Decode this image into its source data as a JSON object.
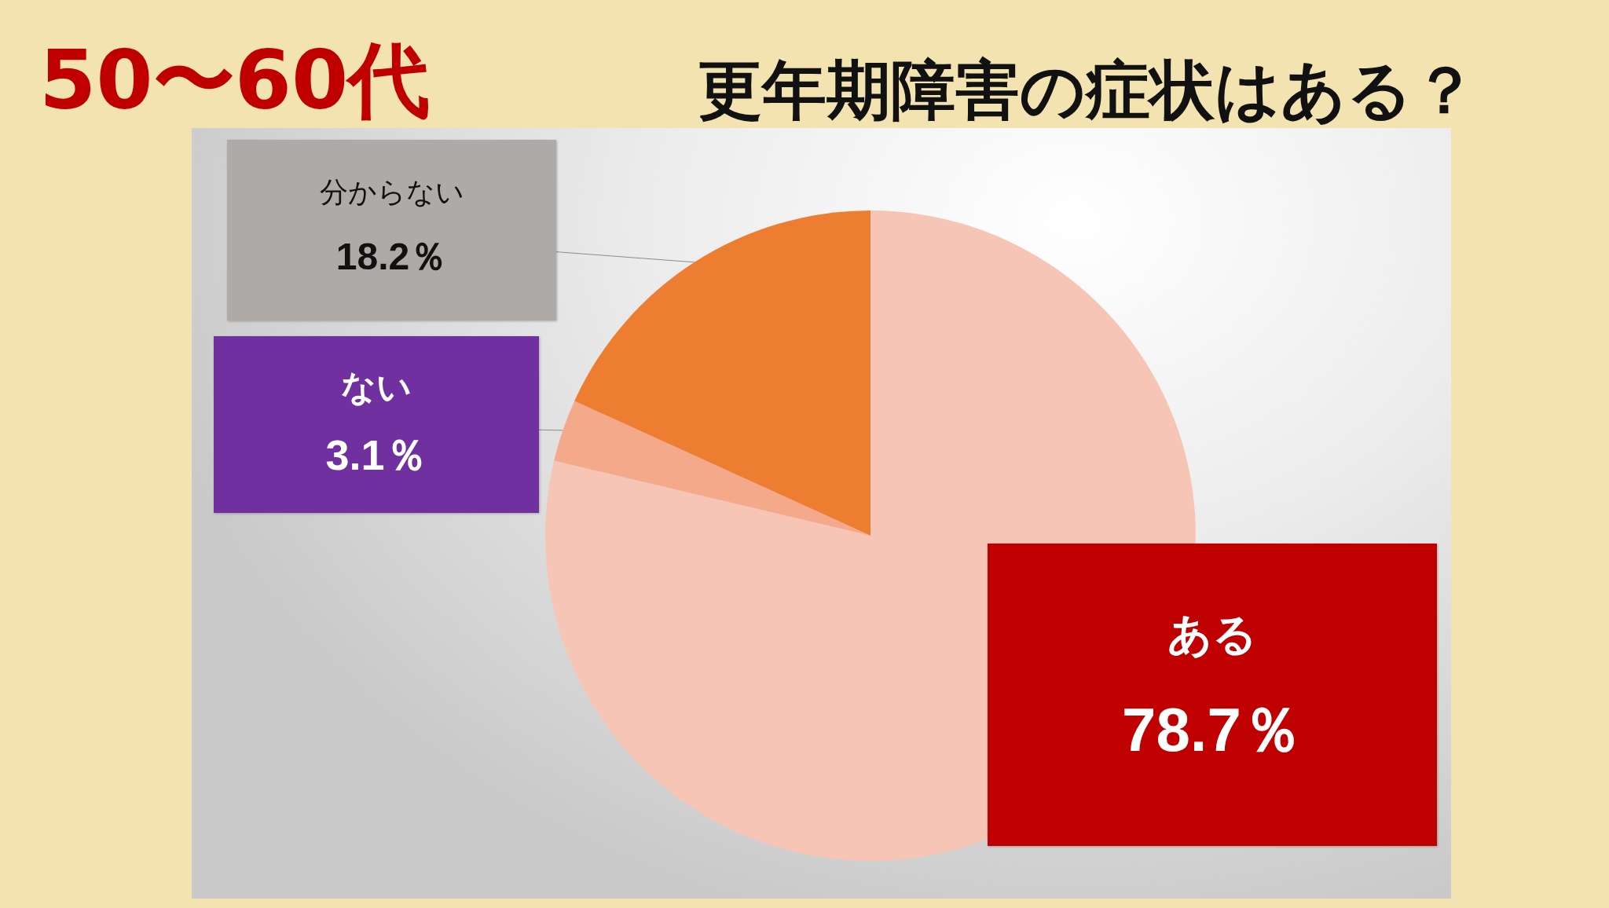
{
  "chart_data": {
    "type": "pie",
    "title": "更年期障害の症状はある？",
    "subtitle": "50〜60代",
    "categories": [
      "ある",
      "ない",
      "分からない"
    ],
    "values": [
      78.7,
      3.1,
      18.2
    ],
    "colors": [
      "#f6c5b5",
      "#f3a98a",
      "#ed7d31"
    ],
    "value_labels": [
      "78.7％",
      "3.1％",
      "18.2％"
    ]
  }
}
